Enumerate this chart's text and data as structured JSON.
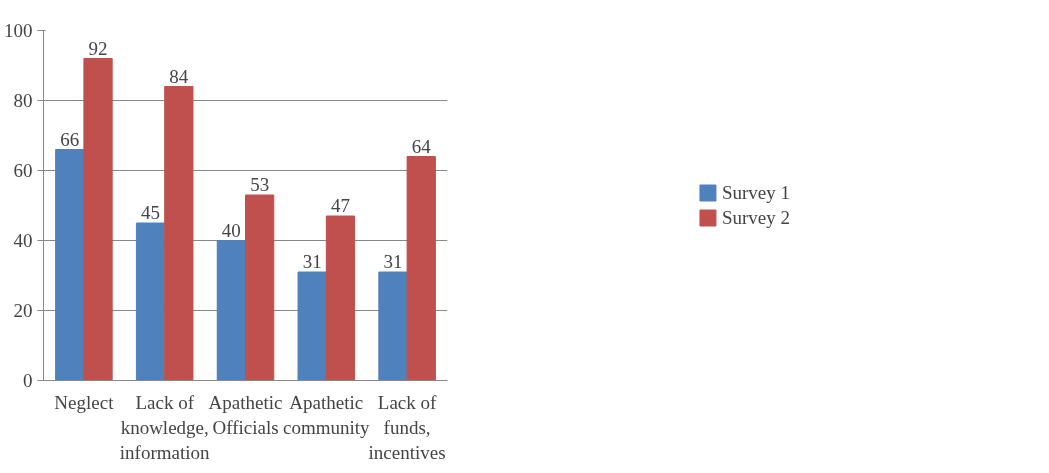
{
  "chart_data": {
    "type": "bar",
    "categories": [
      "Neglect",
      "Lack of knowledge, information",
      "Apathetic Officials",
      "Apathetic community",
      "Lack of funds, incentives"
    ],
    "series": [
      {
        "name": "Survey 1",
        "color": "#4f81bd",
        "values": [
          66,
          45,
          40,
          31,
          31
        ]
      },
      {
        "name": "Survey 2",
        "color": "#c0504d",
        "values": [
          92,
          84,
          53,
          47,
          64
        ]
      }
    ],
    "ylim": [
      0,
      100
    ],
    "yticks": [
      0,
      20,
      40,
      60,
      80,
      100
    ],
    "grid": "y",
    "legend": "right",
    "data_labels": true
  }
}
